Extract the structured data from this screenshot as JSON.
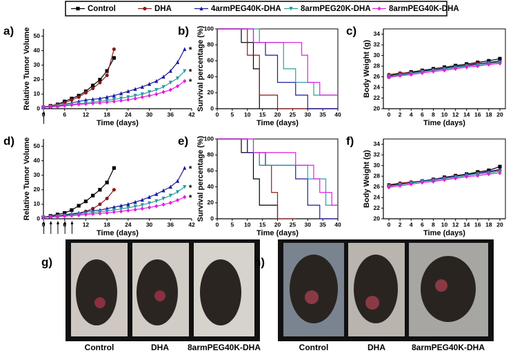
{
  "chart_data": [
    {
      "type": "line",
      "label": "a)",
      "xlabel": "Time (days)",
      "ylabel": "Relative Tumor Volume",
      "xlim": [
        0,
        42
      ],
      "xticks": [
        0,
        6,
        12,
        18,
        24,
        30,
        36,
        42
      ],
      "ylim": [
        0,
        55
      ],
      "yticks": [
        0,
        10,
        20,
        30,
        40,
        50
      ],
      "dosing_days": [
        0
      ],
      "series": [
        {
          "name": "Control",
          "color": "#000000",
          "marker": "square",
          "x": [
            0,
            2,
            4,
            6,
            8,
            10,
            12,
            14,
            16,
            18,
            20
          ],
          "values": [
            1,
            2,
            3,
            5,
            7,
            9,
            12,
            16,
            20,
            26,
            35
          ]
        },
        {
          "name": "DHA",
          "color": "#8b1a1a",
          "marker": "circle",
          "x": [
            0,
            2,
            4,
            6,
            8,
            10,
            12,
            14,
            16,
            18,
            20
          ],
          "values": [
            1,
            2,
            3,
            4,
            6,
            8,
            11,
            14,
            18,
            23,
            41
          ]
        },
        {
          "name": "4armPEG40K-DHA",
          "color": "#1a1aa0",
          "marker": "triangle",
          "annotation": "*",
          "x": [
            0,
            2,
            4,
            6,
            8,
            10,
            12,
            14,
            16,
            18,
            20,
            22,
            24,
            26,
            28,
            30,
            32,
            34,
            36,
            38,
            40
          ],
          "values": [
            1,
            1.5,
            2,
            3,
            4,
            5,
            6,
            6.5,
            7,
            8,
            9,
            10.5,
            12,
            13.5,
            15,
            17,
            19,
            22,
            26,
            32,
            41
          ]
        },
        {
          "name": "8armPEG20K-DHA",
          "color": "#2a9d9d",
          "marker": "triangle-down",
          "annotation": "*",
          "x": [
            0,
            2,
            4,
            6,
            8,
            10,
            12,
            14,
            16,
            18,
            20,
            22,
            24,
            26,
            28,
            30,
            32,
            34,
            36,
            38,
            40
          ],
          "values": [
            1,
            1.3,
            1.8,
            2.3,
            3,
            3.5,
            4,
            4.5,
            5,
            5.7,
            6.4,
            7.2,
            8,
            9,
            10,
            11.5,
            13,
            15,
            18,
            21,
            26
          ]
        },
        {
          "name": "8armPEG40K-DHA",
          "color": "#e020e0",
          "marker": "diamond",
          "annotation": "*",
          "x": [
            0,
            2,
            4,
            6,
            8,
            10,
            12,
            14,
            16,
            18,
            20,
            22,
            24,
            26,
            28,
            30,
            32,
            34,
            36,
            38,
            40
          ],
          "values": [
            1,
            1.2,
            1.5,
            2,
            2.5,
            3,
            3.3,
            3.7,
            4,
            4.5,
            5,
            5.6,
            6.2,
            7,
            8,
            9,
            10,
            11.5,
            13,
            15.5,
            19
          ]
        }
      ]
    },
    {
      "type": "step",
      "label": "b)",
      "xlabel": "Time (days)",
      "ylabel": "Survival percentage (%)",
      "box": true,
      "xlim": [
        0,
        40
      ],
      "xticks": [
        0,
        5,
        10,
        15,
        20,
        25,
        30,
        35,
        40
      ],
      "ylim": [
        0,
        100
      ],
      "yticks": [
        0,
        20,
        40,
        60,
        80,
        100
      ],
      "series": [
        {
          "color": "#000000",
          "x": [
            0,
            8,
            12,
            14
          ],
          "values": [
            100,
            83,
            50,
            0
          ]
        },
        {
          "color": "#8b1a1a",
          "x": [
            0,
            10,
            14,
            20,
            40
          ],
          "values": [
            100,
            67,
            17,
            0,
            0
          ]
        },
        {
          "color": "#1a1aa0",
          "x": [
            0,
            12,
            16,
            20,
            26,
            30,
            40
          ],
          "values": [
            100,
            83,
            67,
            33,
            17,
            0,
            0
          ]
        },
        {
          "color": "#2a9d9d",
          "x": [
            0,
            14,
            22,
            26,
            32,
            40
          ],
          "values": [
            100,
            83,
            50,
            33,
            17,
            17
          ]
        },
        {
          "color": "#e020e0",
          "x": [
            0,
            12,
            28,
            30,
            34,
            40
          ],
          "values": [
            100,
            83,
            67,
            33,
            17,
            17
          ]
        }
      ]
    },
    {
      "type": "line",
      "label": "c)",
      "xlabel": "Time (days)",
      "ylabel": "Body Weight (g)",
      "box": true,
      "xlim": [
        -1,
        21
      ],
      "xticks": [
        0,
        2,
        4,
        6,
        8,
        10,
        12,
        14,
        16,
        18,
        20
      ],
      "ylim": [
        20,
        35
      ],
      "yticks": [
        20,
        22,
        24,
        26,
        28,
        30,
        32,
        34
      ],
      "x": [
        0,
        2,
        4,
        6,
        8,
        10,
        12,
        14,
        16,
        18,
        20
      ],
      "series": [
        {
          "color": "#000000",
          "values": [
            26.2,
            26.6,
            26.9,
            27.2,
            27.5,
            27.8,
            28.1,
            28.4,
            28.7,
            29.0,
            29.4
          ]
        },
        {
          "color": "#8b1a1a",
          "values": [
            26.4,
            26.7,
            26.8,
            27.1,
            27.3,
            27.6,
            27.9,
            28.2,
            28.5,
            28.6,
            28.8
          ]
        },
        {
          "color": "#1a1aa0",
          "values": [
            26.0,
            26.4,
            26.7,
            27.0,
            27.3,
            27.6,
            27.9,
            28.1,
            28.4,
            28.7,
            29.0
          ]
        },
        {
          "color": "#2a9d9d",
          "values": [
            26.1,
            26.3,
            26.6,
            26.9,
            27.2,
            27.4,
            27.7,
            28.0,
            28.2,
            28.5,
            28.7
          ]
        },
        {
          "color": "#e020e0",
          "values": [
            25.9,
            26.2,
            26.4,
            26.7,
            27.0,
            27.2,
            27.5,
            27.8,
            28.0,
            28.3,
            28.5
          ]
        }
      ]
    },
    {
      "type": "line",
      "label": "d)",
      "xlabel": "Time (days)",
      "ylabel": "Relative Tumor Volume",
      "xlim": [
        0,
        42
      ],
      "xticks": [
        0,
        6,
        12,
        18,
        24,
        30,
        36,
        42
      ],
      "ylim": [
        0,
        55
      ],
      "yticks": [
        0,
        10,
        20,
        30,
        40,
        50
      ],
      "dosing_days": [
        0,
        2,
        4,
        6,
        8
      ],
      "series": [
        {
          "color": "#000000",
          "x": [
            0,
            2,
            4,
            6,
            8,
            10,
            12,
            14,
            16,
            18,
            20
          ],
          "values": [
            1,
            2,
            3,
            4,
            6,
            9,
            12,
            16,
            20,
            25,
            35
          ]
        },
        {
          "color": "#8b1a1a",
          "x": [
            0,
            2,
            4,
            6,
            8,
            10,
            12,
            14,
            16,
            18,
            20
          ],
          "values": [
            1,
            1.5,
            2,
            2.5,
            3,
            3.5,
            5,
            7,
            10,
            14,
            20
          ]
        },
        {
          "color": "#1a1aa0",
          "annotation": "*",
          "x": [
            0,
            2,
            4,
            6,
            8,
            10,
            12,
            14,
            16,
            18,
            20,
            22,
            24,
            26,
            28,
            30,
            32,
            34,
            36,
            38,
            40
          ],
          "values": [
            1,
            1.5,
            2,
            2.8,
            3.5,
            4,
            5,
            5.5,
            6,
            7,
            8,
            9,
            10,
            11.5,
            13,
            15,
            17,
            19.5,
            22,
            26,
            35
          ]
        },
        {
          "color": "#2a9d9d",
          "annotation": "*",
          "x": [
            0,
            2,
            4,
            6,
            8,
            10,
            12,
            14,
            16,
            18,
            20,
            22,
            24,
            26,
            28,
            30,
            32,
            34,
            36,
            38,
            40
          ],
          "values": [
            1,
            1.3,
            1.7,
            2.2,
            2.8,
            3.2,
            3.7,
            4.2,
            4.8,
            5.4,
            6,
            6.8,
            7.6,
            8.5,
            9.5,
            10.8,
            12.2,
            14,
            16,
            18.5,
            22
          ]
        },
        {
          "color": "#e020e0",
          "annotation": "*",
          "x": [
            0,
            2,
            4,
            6,
            8,
            10,
            12,
            14,
            16,
            18,
            20,
            22,
            24,
            26,
            28,
            30,
            32,
            34,
            36,
            38,
            40
          ],
          "values": [
            1,
            1.2,
            1.4,
            1.8,
            2.2,
            2.5,
            2.9,
            3.3,
            3.7,
            4.1,
            4.6,
            5.1,
            5.7,
            6.3,
            7,
            7.8,
            8.7,
            9.8,
            11,
            12.8,
            15
          ]
        }
      ]
    },
    {
      "type": "step",
      "label": "e)",
      "xlabel": "Time (days)",
      "ylabel": "Survival percentage (%)",
      "box": true,
      "xlim": [
        0,
        40
      ],
      "xticks": [
        0,
        5,
        10,
        15,
        20,
        25,
        30,
        35,
        40
      ],
      "ylim": [
        0,
        100
      ],
      "yticks": [
        0,
        20,
        40,
        60,
        80,
        100
      ],
      "series": [
        {
          "color": "#000000",
          "x": [
            0,
            8,
            12,
            14,
            20
          ],
          "values": [
            100,
            83,
            50,
            17,
            0
          ]
        },
        {
          "color": "#8b1a1a",
          "x": [
            0,
            10,
            14,
            18,
            20,
            26
          ],
          "values": [
            100,
            83,
            67,
            33,
            0,
            0
          ]
        },
        {
          "color": "#1a1aa0",
          "x": [
            0,
            10,
            16,
            26,
            30,
            34,
            40
          ],
          "values": [
            100,
            83,
            67,
            50,
            17,
            0,
            0
          ]
        },
        {
          "color": "#2a9d9d",
          "x": [
            0,
            12,
            14,
            30,
            36,
            40
          ],
          "values": [
            100,
            83,
            67,
            50,
            17,
            17
          ]
        },
        {
          "color": "#e020e0",
          "x": [
            0,
            12,
            26,
            32,
            34,
            38,
            40
          ],
          "values": [
            100,
            83,
            67,
            50,
            33,
            17,
            17
          ]
        }
      ]
    },
    {
      "type": "line",
      "label": "f)",
      "xlabel": "Time (days)",
      "ylabel": "Body Weight (g)",
      "box": true,
      "xlim": [
        -1,
        21
      ],
      "xticks": [
        0,
        2,
        4,
        6,
        8,
        10,
        12,
        14,
        16,
        18,
        20
      ],
      "ylim": [
        20,
        35
      ],
      "yticks": [
        20,
        22,
        24,
        26,
        28,
        30,
        32,
        34
      ],
      "x": [
        0,
        2,
        4,
        6,
        8,
        10,
        12,
        14,
        16,
        18,
        20
      ],
      "series": [
        {
          "color": "#000000",
          "values": [
            26.3,
            26.6,
            26.8,
            27.1,
            27.4,
            27.8,
            28.1,
            28.4,
            28.8,
            29.1,
            29.8
          ]
        },
        {
          "color": "#8b1a1a",
          "values": [
            26.4,
            26.7,
            26.9,
            27.1,
            27.4,
            27.7,
            28.0,
            28.3,
            28.6,
            28.8,
            29.1
          ]
        },
        {
          "color": "#1a1aa0",
          "values": [
            26.2,
            26.5,
            26.8,
            27.1,
            27.4,
            27.7,
            28.0,
            28.3,
            28.6,
            28.9,
            29.3
          ]
        },
        {
          "color": "#2a9d9d",
          "values": [
            26.1,
            26.4,
            26.7,
            27.0,
            27.2,
            27.5,
            27.8,
            28.1,
            28.4,
            28.6,
            28.9
          ]
        },
        {
          "color": "#e020e0",
          "values": [
            25.9,
            26.2,
            26.5,
            26.8,
            27.0,
            27.3,
            27.6,
            27.9,
            28.1,
            28.4,
            28.6
          ]
        }
      ]
    }
  ],
  "photos": [
    {
      "label": "g)",
      "captions": [
        "Control",
        "DHA",
        "8armPEG40K-DHA"
      ]
    },
    {
      "label": "h)",
      "captions": [
        "Control",
        "DHA",
        "8armPEG40K-DHA"
      ]
    }
  ]
}
